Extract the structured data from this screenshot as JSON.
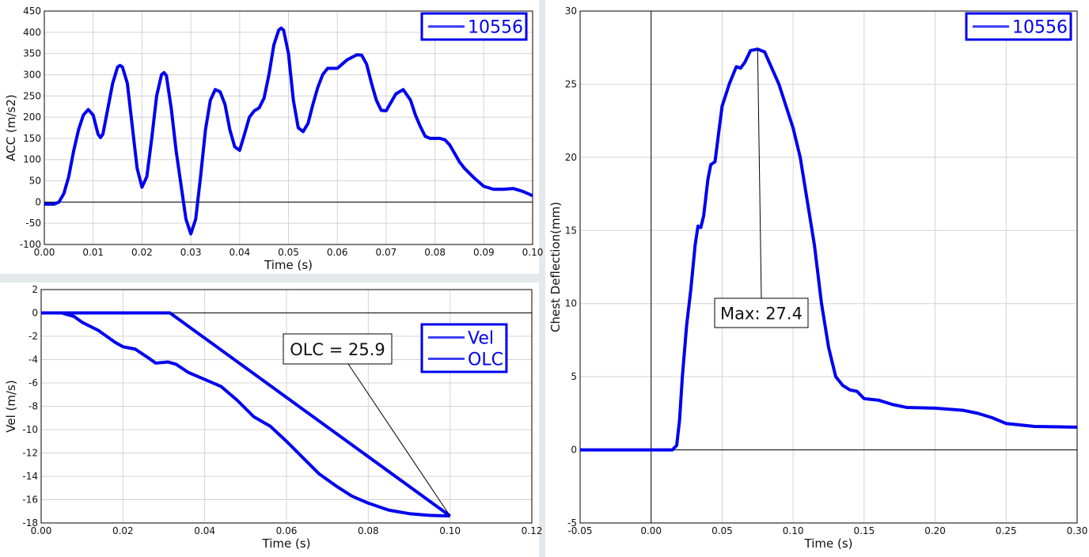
{
  "chart_data": [
    {
      "type": "line",
      "xlabel": "Time (s)",
      "ylabel": "ACC (m/s2)",
      "grid": true,
      "legend": "upper right",
      "xlim": [
        0,
        0.1
      ],
      "xticks": [
        {
          "value": 0,
          "label": "0.00"
        },
        0.01,
        0.02,
        0.03,
        0.04,
        0.05,
        0.06,
        0.07,
        0.08,
        0.09,
        {
          "value": 0.1,
          "label": "0.10"
        }
      ],
      "ylim": [
        -100,
        450
      ],
      "yticks": [
        -100,
        -50,
        0,
        50,
        100,
        150,
        200,
        250,
        300,
        350,
        400,
        450
      ],
      "series": [
        {
          "name": "10556",
          "color": "#0000ee",
          "x": [
            0,
            0.002,
            0.003,
            0.004,
            0.005,
            0.006,
            0.007,
            0.008,
            0.009,
            0.01,
            0.011,
            0.0115,
            0.012,
            0.013,
            0.014,
            0.015,
            0.0155,
            0.016,
            0.017,
            0.018,
            0.019,
            0.02,
            0.021,
            0.022,
            0.023,
            0.024,
            0.0245,
            0.025,
            0.026,
            0.027,
            0.028,
            0.029,
            0.03,
            0.031,
            0.032,
            0.033,
            0.034,
            0.035,
            0.036,
            0.037,
            0.038,
            0.039,
            0.04,
            0.041,
            0.042,
            0.043,
            0.044,
            0.045,
            0.046,
            0.047,
            0.048,
            0.0485,
            0.049,
            0.05,
            0.051,
            0.052,
            0.053,
            0.054,
            0.055,
            0.056,
            0.057,
            0.058,
            0.06,
            0.062,
            0.064,
            0.065,
            0.066,
            0.067,
            0.068,
            0.069,
            0.07,
            0.071,
            0.072,
            0.0735,
            0.075,
            0.076,
            0.077,
            0.078,
            0.079,
            0.081,
            0.082,
            0.083,
            0.084,
            0.085,
            0.086,
            0.088,
            0.09,
            0.092,
            0.094,
            0.096,
            0.098,
            0.1
          ],
          "values": [
            -5,
            -5,
            0,
            20,
            60,
            120,
            170,
            205,
            218,
            205,
            160,
            152,
            160,
            220,
            280,
            318,
            322,
            318,
            280,
            180,
            80,
            35,
            60,
            150,
            250,
            300,
            305,
            298,
            220,
            120,
            40,
            -40,
            -75,
            -40,
            60,
            170,
            240,
            265,
            260,
            230,
            170,
            130,
            122,
            160,
            200,
            215,
            222,
            245,
            300,
            370,
            405,
            410,
            405,
            350,
            240,
            175,
            166,
            185,
            230,
            270,
            300,
            315,
            315,
            335,
            347,
            346,
            325,
            280,
            240,
            216,
            215,
            235,
            255,
            265,
            240,
            205,
            178,
            155,
            150,
            150,
            147,
            135,
            115,
            95,
            80,
            57,
            37,
            30,
            30,
            32,
            25,
            15
          ]
        }
      ]
    },
    {
      "type": "line",
      "xlabel": "Time (s)",
      "ylabel": "Vel (m/s)",
      "grid": true,
      "legend": "center right",
      "annotations": [
        "OLC = 25.9"
      ],
      "xlim": [
        0,
        0.12
      ],
      "xticks": [
        {
          "value": 0,
          "label": "0.00"
        },
        0.02,
        0.04,
        0.06,
        0.08,
        {
          "value": 0.1,
          "label": "0.10"
        },
        {
          "value": 0.12,
          "label": "0.12"
        }
      ],
      "ylim": [
        -18,
        2
      ],
      "yticks": [
        -18,
        -16,
        -14,
        -12,
        -10,
        -8,
        -6,
        -4,
        -2,
        0,
        2
      ],
      "series": [
        {
          "name": "Vel",
          "color": "#0000ee",
          "x": [
            0,
            0.005,
            0.008,
            0.01,
            0.014,
            0.018,
            0.02,
            0.023,
            0.026,
            0.028,
            0.031,
            0.033,
            0.036,
            0.04,
            0.044,
            0.048,
            0.052,
            0.056,
            0.06,
            0.064,
            0.068,
            0.072,
            0.076,
            0.08,
            0.085,
            0.09,
            0.095,
            0.1
          ],
          "values": [
            0,
            0,
            -0.3,
            -0.8,
            -1.5,
            -2.5,
            -2.9,
            -3.1,
            -3.8,
            -4.3,
            -4.2,
            -4.4,
            -5.1,
            -5.7,
            -6.3,
            -7.5,
            -8.9,
            -9.7,
            -11,
            -12.4,
            -13.8,
            -14.8,
            -15.7,
            -16.3,
            -16.9,
            -17.2,
            -17.35,
            -17.4
          ]
        },
        {
          "name": "OLC",
          "color": "#0000ee",
          "x": [
            0,
            0.0315,
            0.1
          ],
          "values": [
            0,
            0,
            -17.4
          ]
        }
      ]
    },
    {
      "type": "line",
      "xlabel": "Time (s)",
      "ylabel": "Chest Deflection(mm)",
      "grid": true,
      "legend": "upper right",
      "annotations": [
        "Max: 27.4"
      ],
      "xlim": [
        -0.05,
        0.3
      ],
      "xticks": [
        -0.05,
        {
          "value": 0,
          "label": "0.00"
        },
        0.05,
        {
          "value": 0.1,
          "label": "0.10"
        },
        0.15,
        {
          "value": 0.2,
          "label": "0.20"
        },
        0.25,
        {
          "value": 0.3,
          "label": "0.30"
        }
      ],
      "ylim": [
        -5,
        30
      ],
      "yticks": [
        -5,
        0,
        5,
        10,
        15,
        20,
        25,
        30
      ],
      "series": [
        {
          "name": "10556",
          "color": "#0000ee",
          "x": [
            -0.05,
            0.015,
            0.018,
            0.02,
            0.022,
            0.025,
            0.028,
            0.031,
            0.033,
            0.035,
            0.037,
            0.04,
            0.042,
            0.045,
            0.048,
            0.05,
            0.055,
            0.06,
            0.063,
            0.066,
            0.07,
            0.075,
            0.08,
            0.09,
            0.1,
            0.105,
            0.11,
            0.115,
            0.12,
            0.125,
            0.13,
            0.135,
            0.14,
            0.145,
            0.15,
            0.16,
            0.17,
            0.18,
            0.2,
            0.22,
            0.23,
            0.24,
            0.25,
            0.27,
            0.3
          ],
          "values": [
            0,
            0,
            0.3,
            2,
            5,
            8.5,
            11,
            14,
            15.3,
            15.2,
            16,
            18.5,
            19.5,
            19.7,
            22,
            23.5,
            25,
            26.2,
            26.1,
            26.5,
            27.3,
            27.4,
            27.2,
            25,
            22,
            20,
            17,
            14,
            10,
            7,
            5,
            4.4,
            4.1,
            4,
            3.5,
            3.4,
            3.1,
            2.9,
            2.85,
            2.7,
            2.5,
            2.2,
            1.8,
            1.6,
            1.55
          ]
        }
      ]
    }
  ]
}
